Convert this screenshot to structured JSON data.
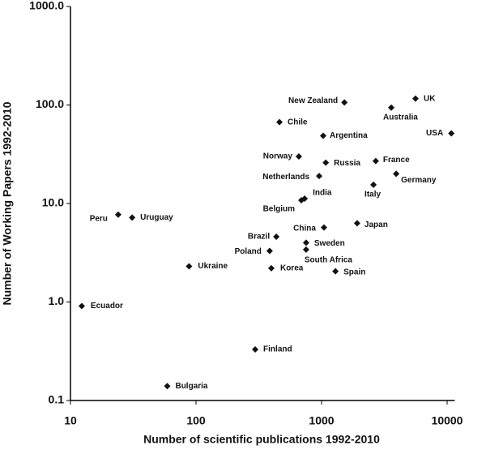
{
  "chart_data": {
    "type": "scatter",
    "x_label": "Number of scientific publications 1992-2010",
    "y_label": "Number of Working Papers 1992-2010",
    "x_log": true,
    "y_log": true,
    "color": "#111111",
    "xlim": [
      10,
      11500
    ],
    "ylim": [
      0.1,
      1000
    ],
    "xticks": [
      10,
      100,
      1000,
      10000
    ],
    "yticks": [
      0.1,
      {
        "value": 1,
        "label": "1.0"
      },
      {
        "value": 10,
        "label": "10.0"
      },
      {
        "value": 100,
        "label": "100.0"
      },
      {
        "value": 1000,
        "label": "1000.0"
      }
    ],
    "point_labels": [
      "UK",
      "New Zealand",
      "Australia",
      "USA",
      "Chile",
      "Argentina",
      "Norway",
      "Russia",
      "France",
      "Netherlands",
      "Germany",
      "India",
      "Belgium",
      "Italy",
      "Peru",
      "Uruguay",
      "Japan",
      "China",
      "Brazil",
      "Sweden",
      "Poland",
      "South Africa",
      "Ukraine",
      "Korea",
      "Spain",
      "Ecuador",
      "Finland",
      "Bulgaria"
    ],
    "x": [
      5600,
      1520,
      3590,
      10800,
      462,
      1030,
      659,
      1080,
      2700,
      957,
      3930,
      733,
      690,
      2590,
      24,
      31,
      1920,
      1045,
      436,
      753,
      386,
      753,
      88,
      398,
      1290,
      12.3,
      296,
      59
    ],
    "values": [
      116,
      106,
      94,
      51.5,
      67,
      48.7,
      30,
      26,
      27,
      19,
      20,
      11.2,
      10.8,
      15.5,
      7.7,
      7.2,
      6.3,
      5.7,
      4.6,
      4.0,
      3.3,
      3.4,
      2.3,
      2.2,
      2.05,
      0.91,
      0.33,
      0.14
    ]
  }
}
